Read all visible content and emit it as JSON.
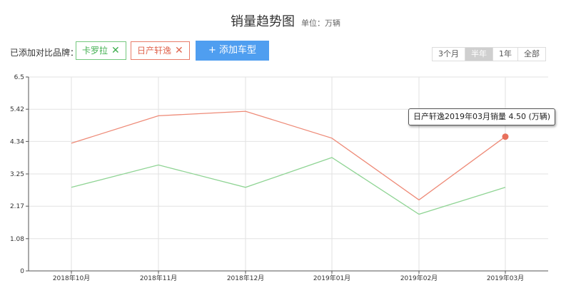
{
  "header": {
    "title": "销量趋势图",
    "unit": "单位：万辆"
  },
  "compare": {
    "label": "已添加对比品牌：",
    "brands": [
      {
        "name": "卡罗拉",
        "remove_icon": "close-icon"
      },
      {
        "name": "日产轩逸",
        "remove_icon": "close-icon"
      }
    ],
    "add_button": "+ 添加车型"
  },
  "range": {
    "options": [
      "3个月",
      "半年",
      "1年",
      "全部"
    ],
    "selected": "半年"
  },
  "tooltip": {
    "text": "日产轩逸2019年03月销量 4.50 (万辆)"
  },
  "chart_data": {
    "type": "line",
    "title": "销量趋势图",
    "unit": "单位：万辆",
    "categories": [
      "2018年10月",
      "2018年11月",
      "2018年12月",
      "2019年01月",
      "2019年02月",
      "2019年03月"
    ],
    "y_ticks": [
      "0",
      "1.08",
      "2.17",
      "3.25",
      "4.34",
      "5.42",
      "6.5"
    ],
    "ylim": [
      0,
      6.5
    ],
    "grid": true,
    "series": [
      {
        "name": "卡罗拉",
        "color": "#8fd494",
        "values": [
          2.8,
          3.55,
          2.8,
          3.8,
          1.9,
          2.8
        ]
      },
      {
        "name": "日产轩逸",
        "color": "#ee8a77",
        "values": [
          4.28,
          5.2,
          5.35,
          4.45,
          2.38,
          4.5
        ]
      }
    ]
  }
}
